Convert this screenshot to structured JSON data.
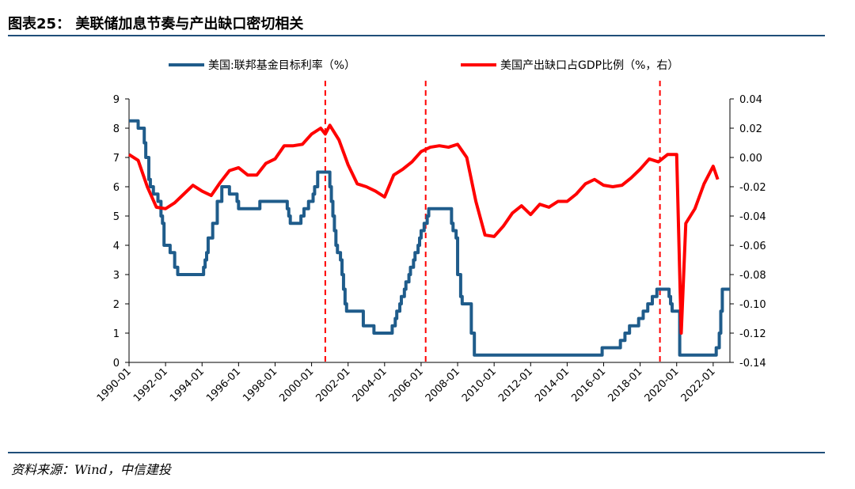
{
  "figure": {
    "title": "图表25： 美联储加息节奏与产出缺口密切相关",
    "source": "资料来源：Wind，中信建投"
  },
  "chart_data": {
    "type": "line",
    "x_ticks": [
      "1990-01",
      "1992-01",
      "1994-01",
      "1996-01",
      "1998-01",
      "2000-01",
      "2002-01",
      "2004-01",
      "2006-01",
      "2008-01",
      "2010-01",
      "2012-01",
      "2014-01",
      "2016-01",
      "2018-01",
      "2020-01",
      "2022-01"
    ],
    "x_range": [
      "1990-01",
      "2022-12"
    ],
    "y_left": {
      "range": [
        0,
        9
      ],
      "ticks": [
        "0",
        "1",
        "2",
        "3",
        "4",
        "5",
        "6",
        "7",
        "8",
        "9"
      ]
    },
    "y_right": {
      "range": [
        -0.14,
        0.04
      ],
      "ticks": [
        "0.04",
        "0.02",
        "0.00",
        "-0.02",
        "-0.04",
        "-0.06",
        "-0.08",
        "-0.10",
        "-0.12",
        "-0.14"
      ]
    },
    "legend_position": "top",
    "vlines": [
      {
        "x": "2000-10"
      },
      {
        "x": "2006-04"
      },
      {
        "x": "2019-02"
      }
    ],
    "series": [
      {
        "name": "美国:联邦基金目标利率（%）",
        "color": "#1f5c8b",
        "axis": "left",
        "step": true,
        "points": [
          [
            "1990-01",
            8.25
          ],
          [
            "1990-07",
            8.0
          ],
          [
            "1990-11",
            7.5
          ],
          [
            "1990-12",
            7.0
          ],
          [
            "1991-02",
            6.25
          ],
          [
            "1991-03",
            6.0
          ],
          [
            "1991-05",
            5.75
          ],
          [
            "1991-08",
            5.5
          ],
          [
            "1991-10",
            5.0
          ],
          [
            "1991-11",
            4.75
          ],
          [
            "1991-12",
            4.0
          ],
          [
            "1992-04",
            3.75
          ],
          [
            "1992-07",
            3.25
          ],
          [
            "1992-09",
            3.0
          ],
          [
            "1994-02",
            3.25
          ],
          [
            "1994-03",
            3.5
          ],
          [
            "1994-04",
            3.75
          ],
          [
            "1994-05",
            4.25
          ],
          [
            "1994-08",
            4.75
          ],
          [
            "1994-11",
            5.5
          ],
          [
            "1995-02",
            6.0
          ],
          [
            "1995-07",
            5.75
          ],
          [
            "1995-12",
            5.5
          ],
          [
            "1996-01",
            5.25
          ],
          [
            "1997-03",
            5.5
          ],
          [
            "1998-09",
            5.25
          ],
          [
            "1998-10",
            5.0
          ],
          [
            "1998-11",
            4.75
          ],
          [
            "1999-06",
            5.0
          ],
          [
            "1999-08",
            5.25
          ],
          [
            "1999-11",
            5.5
          ],
          [
            "2000-02",
            5.75
          ],
          [
            "2000-03",
            6.0
          ],
          [
            "2000-05",
            6.5
          ],
          [
            "2001-01",
            6.0
          ],
          [
            "2001-02",
            5.5
          ],
          [
            "2001-03",
            5.0
          ],
          [
            "2001-04",
            4.5
          ],
          [
            "2001-05",
            4.0
          ],
          [
            "2001-06",
            3.75
          ],
          [
            "2001-08",
            3.5
          ],
          [
            "2001-09",
            3.0
          ],
          [
            "2001-10",
            2.5
          ],
          [
            "2001-11",
            2.0
          ],
          [
            "2001-12",
            1.75
          ],
          [
            "2002-11",
            1.25
          ],
          [
            "2003-06",
            1.0
          ],
          [
            "2004-06",
            1.25
          ],
          [
            "2004-08",
            1.5
          ],
          [
            "2004-09",
            1.75
          ],
          [
            "2004-11",
            2.0
          ],
          [
            "2004-12",
            2.25
          ],
          [
            "2005-02",
            2.5
          ],
          [
            "2005-03",
            2.75
          ],
          [
            "2005-05",
            3.0
          ],
          [
            "2005-06",
            3.25
          ],
          [
            "2005-08",
            3.5
          ],
          [
            "2005-09",
            3.75
          ],
          [
            "2005-11",
            4.0
          ],
          [
            "2005-12",
            4.25
          ],
          [
            "2006-01",
            4.5
          ],
          [
            "2006-03",
            4.75
          ],
          [
            "2006-05",
            5.0
          ],
          [
            "2006-06",
            5.25
          ],
          [
            "2007-09",
            4.75
          ],
          [
            "2007-10",
            4.5
          ],
          [
            "2007-12",
            4.25
          ],
          [
            "2008-01",
            3.0
          ],
          [
            "2008-03",
            2.25
          ],
          [
            "2008-04",
            2.0
          ],
          [
            "2008-10",
            1.0
          ],
          [
            "2008-12",
            0.25
          ],
          [
            "2015-12",
            0.5
          ],
          [
            "2016-12",
            0.75
          ],
          [
            "2017-03",
            1.0
          ],
          [
            "2017-06",
            1.25
          ],
          [
            "2017-12",
            1.5
          ],
          [
            "2018-03",
            1.75
          ],
          [
            "2018-06",
            2.0
          ],
          [
            "2018-09",
            2.25
          ],
          [
            "2018-12",
            2.5
          ],
          [
            "2019-08",
            2.25
          ],
          [
            "2019-09",
            2.0
          ],
          [
            "2019-10",
            1.75
          ],
          [
            "2020-03",
            0.25
          ],
          [
            "2022-03",
            0.5
          ],
          [
            "2022-05",
            1.0
          ],
          [
            "2022-06",
            1.75
          ],
          [
            "2022-07",
            2.5
          ]
        ]
      },
      {
        "name": "美国产出缺口占GDP比例（%，右）",
        "color": "#ff0000",
        "axis": "right",
        "step": false,
        "points": [
          [
            "1990-01",
            0.002
          ],
          [
            "1990-07",
            -0.002
          ],
          [
            "1991-01",
            -0.02
          ],
          [
            "1991-07",
            -0.034
          ],
          [
            "1992-01",
            -0.035
          ],
          [
            "1992-07",
            -0.031
          ],
          [
            "1993-01",
            -0.025
          ],
          [
            "1993-07",
            -0.019
          ],
          [
            "1994-01",
            -0.023
          ],
          [
            "1994-07",
            -0.026
          ],
          [
            "1995-01",
            -0.017
          ],
          [
            "1995-07",
            -0.009
          ],
          [
            "1996-01",
            -0.007
          ],
          [
            "1996-07",
            -0.012
          ],
          [
            "1997-01",
            -0.012
          ],
          [
            "1997-07",
            -0.004
          ],
          [
            "1998-01",
            -0.001
          ],
          [
            "1998-07",
            0.008
          ],
          [
            "1999-01",
            0.008
          ],
          [
            "1999-07",
            0.009
          ],
          [
            "2000-01",
            0.016
          ],
          [
            "2000-07",
            0.02
          ],
          [
            "2000-10",
            0.016
          ],
          [
            "2001-01",
            0.022
          ],
          [
            "2001-07",
            0.012
          ],
          [
            "2002-01",
            -0.005
          ],
          [
            "2002-07",
            -0.018
          ],
          [
            "2003-01",
            -0.02
          ],
          [
            "2003-07",
            -0.023
          ],
          [
            "2004-01",
            -0.027
          ],
          [
            "2004-07",
            -0.012
          ],
          [
            "2005-01",
            -0.008
          ],
          [
            "2005-07",
            -0.003
          ],
          [
            "2006-01",
            0.004
          ],
          [
            "2006-07",
            0.007
          ],
          [
            "2007-01",
            0.008
          ],
          [
            "2007-07",
            0.007
          ],
          [
            "2008-01",
            0.009
          ],
          [
            "2008-07",
            0.0
          ],
          [
            "2009-01",
            -0.03
          ],
          [
            "2009-07",
            -0.053
          ],
          [
            "2010-01",
            -0.054
          ],
          [
            "2010-07",
            -0.047
          ],
          [
            "2011-01",
            -0.038
          ],
          [
            "2011-07",
            -0.033
          ],
          [
            "2012-01",
            -0.039
          ],
          [
            "2012-07",
            -0.032
          ],
          [
            "2013-01",
            -0.034
          ],
          [
            "2013-07",
            -0.03
          ],
          [
            "2014-01",
            -0.03
          ],
          [
            "2014-07",
            -0.025
          ],
          [
            "2015-01",
            -0.018
          ],
          [
            "2015-07",
            -0.015
          ],
          [
            "2016-01",
            -0.019
          ],
          [
            "2016-07",
            -0.02
          ],
          [
            "2017-01",
            -0.019
          ],
          [
            "2017-07",
            -0.014
          ],
          [
            "2018-01",
            -0.008
          ],
          [
            "2018-07",
            -0.001
          ],
          [
            "2019-01",
            -0.003
          ],
          [
            "2019-07",
            0.002
          ],
          [
            "2020-01",
            0.002
          ],
          [
            "2020-04",
            -0.12
          ],
          [
            "2020-07",
            -0.045
          ],
          [
            "2021-01",
            -0.035
          ],
          [
            "2021-07",
            -0.018
          ],
          [
            "2022-01",
            -0.006
          ],
          [
            "2022-04",
            -0.015
          ]
        ]
      }
    ]
  }
}
